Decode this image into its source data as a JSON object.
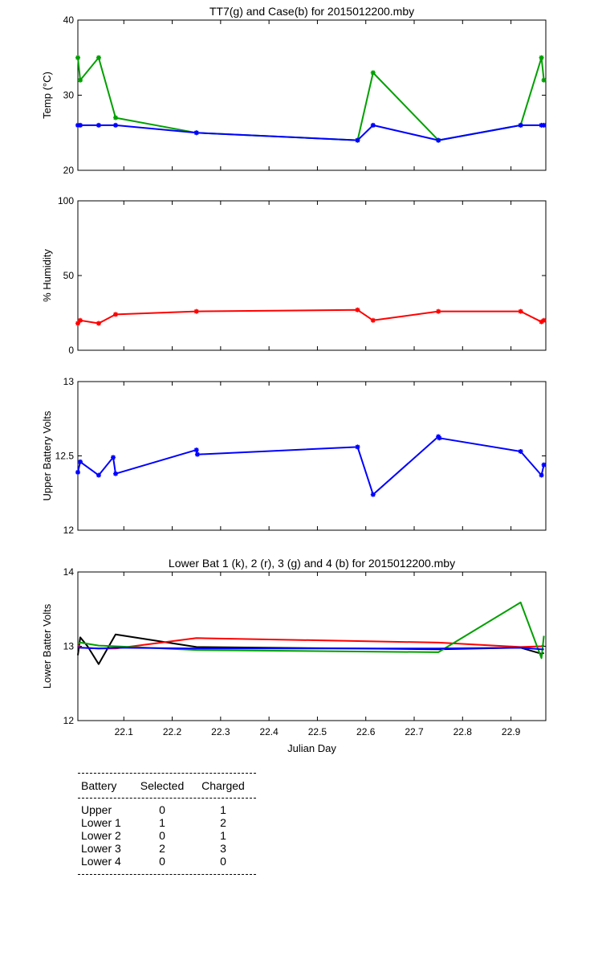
{
  "chart_data": [
    {
      "type": "line",
      "title": "TT7(g) and Case(b) for 2015012200.mby",
      "xlabel": "",
      "ylabel": "Temp  (°C)",
      "xlim": [
        22.005,
        22.972
      ],
      "ylim": [
        20,
        40
      ],
      "yticks": [
        20,
        30,
        40
      ],
      "grid": false,
      "series": [
        {
          "color": "#00a000",
          "markers": true,
          "x": [
            22.005,
            22.01,
            22.048,
            22.083,
            22.25,
            22.583,
            22.615,
            22.75,
            22.92,
            22.963,
            22.968
          ],
          "y": [
            35,
            32,
            35,
            27,
            25,
            24,
            33,
            24,
            26,
            35,
            32
          ]
        },
        {
          "color": "#0000ff",
          "markers": true,
          "x": [
            22.005,
            22.01,
            22.048,
            22.083,
            22.25,
            22.583,
            22.615,
            22.75,
            22.92,
            22.963,
            22.968
          ],
          "y": [
            26,
            26,
            26,
            26,
            25,
            24,
            26,
            24,
            26,
            26,
            26
          ]
        }
      ]
    },
    {
      "type": "line",
      "title": "",
      "xlabel": "",
      "ylabel": "% Humidity",
      "xlim": [
        22.005,
        22.972
      ],
      "ylim": [
        0,
        100
      ],
      "yticks": [
        0,
        50,
        100
      ],
      "grid": false,
      "series": [
        {
          "color": "#ff0000",
          "markers": true,
          "x": [
            22.005,
            22.01,
            22.048,
            22.083,
            22.25,
            22.583,
            22.615,
            22.75,
            22.92,
            22.963,
            22.968
          ],
          "y": [
            18,
            20,
            18,
            24,
            26,
            27,
            20,
            26,
            26,
            19,
            20
          ]
        }
      ]
    },
    {
      "type": "line",
      "title": "",
      "xlabel": "",
      "ylabel": "Upper Battery Volts",
      "xlim": [
        22.005,
        22.972
      ],
      "ylim": [
        12,
        13
      ],
      "yticks": [
        12,
        12.5,
        13
      ],
      "ytick_labels": [
        "12",
        "12.5",
        "13"
      ],
      "grid": false,
      "series": [
        {
          "color": "#0000ff",
          "markers": true,
          "x": [
            22.005,
            22.01,
            22.048,
            22.078,
            22.083,
            22.25,
            22.252,
            22.583,
            22.615,
            22.75,
            22.752,
            22.92,
            22.963,
            22.968
          ],
          "y": [
            12.39,
            12.46,
            12.37,
            12.49,
            12.38,
            12.54,
            12.51,
            12.56,
            12.24,
            12.63,
            12.62,
            12.53,
            12.37,
            12.44
          ]
        }
      ]
    },
    {
      "type": "line",
      "title": "Lower Bat 1 (k), 2 (r), 3 (g) and 4 (b) for 2015012200.mby",
      "xlabel": "Julian Day",
      "ylabel": "Lower Batter Volts",
      "xlim": [
        22.005,
        22.972
      ],
      "ylim": [
        12,
        14
      ],
      "yticks": [
        12,
        13,
        14
      ],
      "xticks": [
        22.1,
        22.2,
        22.3,
        22.4,
        22.5,
        22.6,
        22.7,
        22.8,
        22.9
      ],
      "xtick_labels": [
        "22.1",
        "22.2",
        "22.3",
        "22.4",
        "22.5",
        "22.6",
        "22.7",
        "22.8",
        "22.9"
      ],
      "grid": false,
      "series": [
        {
          "color": "#000000",
          "markers": false,
          "x": [
            22.005,
            22.01,
            22.025,
            22.048,
            22.083,
            22.25,
            22.583,
            22.75,
            22.92,
            22.963,
            22.968
          ],
          "y": [
            12.88,
            13.12,
            13.0,
            12.76,
            13.16,
            12.99,
            12.97,
            12.96,
            12.98,
            12.9,
            12.91
          ]
        },
        {
          "color": "#ff0000",
          "markers": false,
          "x": [
            22.005,
            22.01,
            22.048,
            22.083,
            22.25,
            22.583,
            22.75,
            22.92,
            22.963,
            22.968
          ],
          "y": [
            13.02,
            12.98,
            12.97,
            12.97,
            13.11,
            13.07,
            13.05,
            12.99,
            13.0,
            13.02
          ]
        },
        {
          "color": "#00a000",
          "markers": false,
          "x": [
            22.005,
            22.01,
            22.048,
            22.083,
            22.25,
            22.583,
            22.75,
            22.92,
            22.963,
            22.968
          ],
          "y": [
            13.03,
            13.05,
            13.01,
            13.0,
            12.95,
            12.93,
            12.92,
            13.59,
            12.84,
            13.14
          ]
        },
        {
          "color": "#0000ff",
          "markers": false,
          "x": [
            22.005,
            22.01,
            22.048,
            22.083,
            22.25,
            22.583,
            22.75,
            22.92,
            22.963,
            22.968
          ],
          "y": [
            12.99,
            12.98,
            12.97,
            12.98,
            12.97,
            12.97,
            12.97,
            12.98,
            12.96,
            12.96
          ]
        }
      ]
    }
  ],
  "battery_table": {
    "headers": [
      "Battery",
      "Selected",
      "Charged"
    ],
    "rows": [
      [
        "Upper",
        "0",
        "1"
      ],
      [
        "Lower 1",
        "1",
        "2"
      ],
      [
        "Lower 2",
        "0",
        "1"
      ],
      [
        "Lower 3",
        "2",
        "3"
      ],
      [
        "Lower 4",
        "0",
        "0"
      ]
    ]
  }
}
